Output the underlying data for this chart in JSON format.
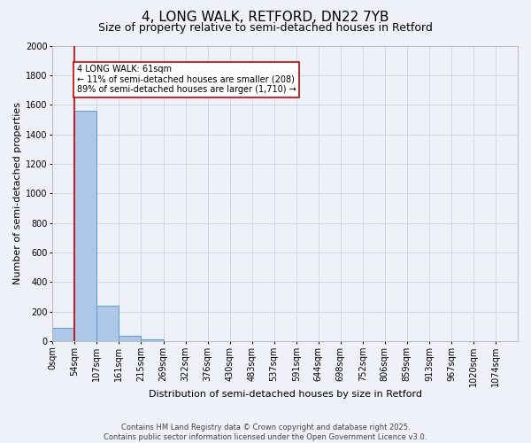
{
  "title": "4, LONG WALK, RETFORD, DN22 7YB",
  "subtitle": "Size of property relative to semi-detached houses in Retford",
  "xlabel": "Distribution of semi-detached houses by size in Retford",
  "ylabel": "Number of semi-detached properties",
  "bin_labels": [
    "0sqm",
    "54sqm",
    "107sqm",
    "161sqm",
    "215sqm",
    "269sqm",
    "322sqm",
    "376sqm",
    "430sqm",
    "483sqm",
    "537sqm",
    "591sqm",
    "644sqm",
    "698sqm",
    "752sqm",
    "806sqm",
    "859sqm",
    "913sqm",
    "967sqm",
    "1020sqm",
    "1074sqm"
  ],
  "bin_values": [
    90,
    1560,
    240,
    35,
    12,
    0,
    0,
    0,
    0,
    0,
    0,
    0,
    0,
    0,
    0,
    0,
    0,
    0,
    0,
    0,
    0
  ],
  "bar_color": "#aec6e8",
  "bar_edge_color": "#5b9bd5",
  "grid_color": "#d0d8e8",
  "background_color": "#eef2f8",
  "vline_x": 1.0,
  "vline_color": "#cc0000",
  "annotation_text": "4 LONG WALK: 61sqm\n← 11% of semi-detached houses are smaller (208)\n89% of semi-detached houses are larger (1,710) →",
  "annotation_box_color": "#ffffff",
  "annotation_box_edge_color": "#cc0000",
  "ylim": [
    0,
    2000
  ],
  "yticks": [
    0,
    200,
    400,
    600,
    800,
    1000,
    1200,
    1400,
    1600,
    1800,
    2000
  ],
  "footnote": "Contains HM Land Registry data © Crown copyright and database right 2025.\nContains public sector information licensed under the Open Government Licence v3.0.",
  "title_fontsize": 11,
  "subtitle_fontsize": 9,
  "label_fontsize": 8,
  "tick_fontsize": 7,
  "annotation_fontsize": 7,
  "footnote_fontsize": 6
}
